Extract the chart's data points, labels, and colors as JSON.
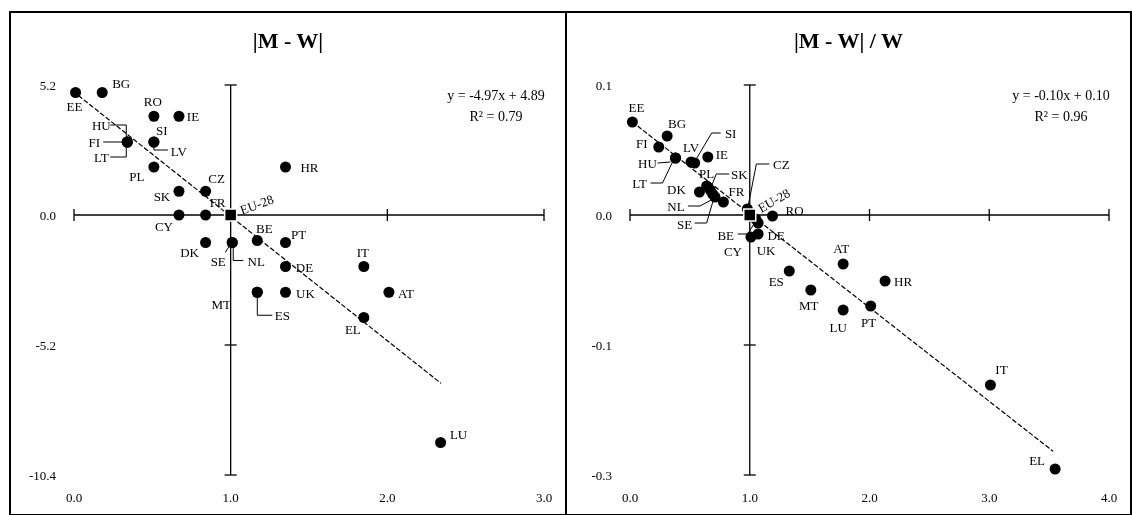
{
  "chart_data": [
    {
      "type": "scatter",
      "title": "|M - W|",
      "xlim": [
        0,
        3
      ],
      "xticks": [
        {
          "value": 0,
          "label": "0.0"
        },
        {
          "value": 1,
          "label": "1.0"
        },
        {
          "value": 2,
          "label": "2.0"
        },
        {
          "value": 3,
          "label": "3.0"
        }
      ],
      "ylim": [
        -10.4,
        5.2
      ],
      "yticks": [
        5.2,
        {
          "value": 0,
          "label": "0.0"
        },
        -5.2,
        -10.4
      ],
      "annotations": [
        "y = -4.97x + 4.89",
        "R² = 0.79"
      ],
      "series": [
        {
          "color": "#000000",
          "marker": "circle",
          "x": [
            0.01,
            0.18,
            0.51,
            0.67,
            0.34,
            0.34,
            0.34,
            0.51,
            0.51,
            0.51,
            1.35,
            0.67,
            0.84,
            0.67,
            0.84,
            0.84,
            1.01,
            1.01,
            1.17,
            1.35,
            1.35,
            1.85,
            1.17,
            1.17,
            1.35,
            2.01,
            1.85,
            2.34
          ],
          "values": [
            4.9,
            4.9,
            3.95,
            3.95,
            2.92,
            2.92,
            2.92,
            2.92,
            2.92,
            1.92,
            1.92,
            0.95,
            0.95,
            0,
            0,
            -1.1,
            -1.1,
            -1.1,
            -1.02,
            -1.1,
            -2.06,
            -2.06,
            -3.09,
            -3.09,
            -3.09,
            -3.09,
            -4.1,
            -9.1
          ],
          "value_labels": [
            "EE",
            "BG",
            "RO",
            "IE",
            "HU",
            "FI",
            "LT",
            "SI",
            "LV",
            "PL",
            "HR",
            "SK",
            "CZ",
            "CY",
            "FR",
            "DK",
            "SE",
            "NL",
            "BE",
            "PT",
            "DE",
            "IT",
            "MT",
            "ES",
            "UK",
            "AT",
            "EL",
            "LU"
          ]
        },
        {
          "name": "EU-28",
          "color": "#000000",
          "marker": "square",
          "x": [
            1.0
          ],
          "values": [
            0
          ]
        },
        {
          "type": "line",
          "color": "#000000",
          "line_style": "dashed",
          "x": [
            0.03,
            2.34
          ],
          "values": [
            4.77,
            -6.72
          ]
        }
      ]
    },
    {
      "type": "scatter",
      "title": "|M - W| / W",
      "xlim": [
        0,
        4
      ],
      "xticks": [
        {
          "value": 0,
          "label": "0.0"
        },
        {
          "value": 1,
          "label": "1.0"
        },
        {
          "value": 2,
          "label": "2.0"
        },
        {
          "value": 3,
          "label": "3.0"
        },
        {
          "value": 4,
          "label": "4.0"
        }
      ],
      "ylim": [
        -0.26,
        0.13
      ],
      "yticks": [
        {
          "value": 0.13,
          "label": "0.1"
        },
        {
          "value": 0,
          "label": "0.0"
        },
        {
          "value": -0.13,
          "label": "-0.1"
        },
        {
          "value": -0.26,
          "label": "-0.3"
        }
      ],
      "annotations": [
        "y = -0.10x + 0.10",
        "R² = 0.96"
      ],
      "series": [
        {
          "color": "#000000",
          "marker": "circle",
          "x": [
            0.02,
            0.31,
            0.24,
            0.38,
            0.38,
            0.51,
            0.54,
            0.65,
            0.64,
            0.67,
            0.58,
            0.71,
            0.69,
            0.78,
            0.98,
            1.05,
            1.19,
            1.07,
            1.07,
            1.01,
            1.78,
            1.33,
            2.13,
            1.51,
            2.01,
            1.78,
            3.01,
            3.55
          ],
          "values": [
            0.093,
            0.079,
            0.068,
            0.057,
            0.057,
            0.053,
            0.052,
            0.058,
            0.029,
            0.025,
            0.023,
            0.018,
            0.021,
            0.013,
            0.006,
            -0.004,
            -0.001,
            -0.008,
            -0.019,
            -0.022,
            -0.049,
            -0.056,
            -0.066,
            -0.075,
            -0.091,
            -0.095,
            -0.17,
            -0.254
          ],
          "value_labels": [
            "EE",
            "BG",
            "FI",
            "HU",
            "LT",
            "LV",
            "SI",
            "IE",
            "PL",
            "SK",
            "DK",
            "NL",
            "SE",
            "FR",
            "CZ",
            "BE",
            "RO",
            "DE",
            "UK",
            "CY",
            "AT",
            "ES",
            "HR",
            "MT",
            "PT",
            "LU",
            "IT",
            "EL"
          ]
        },
        {
          "name": "EU-28",
          "color": "#000000",
          "marker": "square",
          "x": [
            1.0
          ],
          "values": [
            0
          ]
        },
        {
          "type": "line",
          "color": "#000000",
          "line_style": "dashed",
          "x": [
            0.02,
            3.53
          ],
          "values": [
            0.093,
            -0.236
          ]
        }
      ]
    }
  ]
}
